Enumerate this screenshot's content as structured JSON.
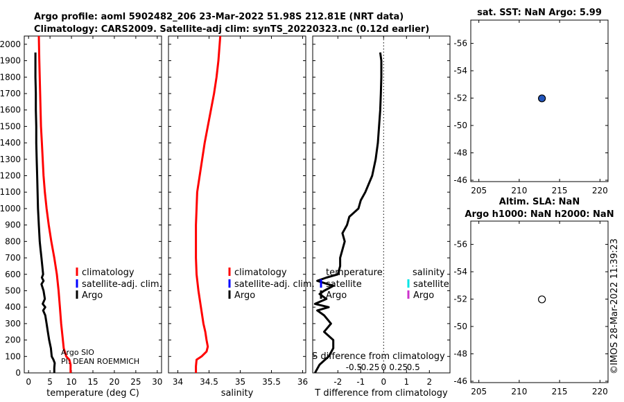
{
  "header": {
    "title_line1": "Argo profile: aoml 5902482_206 23-Mar-2022 51.98S 212.81E (NRT data)",
    "title_line2": "Climatology: CARS2009. Satellite-adj clim: synTS_20220323.nc (0.12d earlier)"
  },
  "footer": {
    "copyright": "©IMOS 28-Mar-2022 11:39:23",
    "argo_institution": "Argo SIO",
    "pi": "PI: DEAN ROEMMICH"
  },
  "colors": {
    "argo": "#000000",
    "climatology": "#ff0000",
    "satellite": "#0000ff",
    "satellite_salinity": "#00e5e5",
    "argo_salinity": "#cc33cc",
    "marker_fill": "#2255bb"
  },
  "chart_data": [
    {
      "id": "temperature",
      "type": "line",
      "xlabel": "temperature (deg C)",
      "ylabel": "",
      "xlim": [
        -1,
        31
      ],
      "ylim": [
        2050,
        0
      ],
      "xticks": [
        0,
        5,
        10,
        15,
        20,
        25,
        30
      ],
      "xtick_labels": [
        "0",
        "5",
        "10",
        "15",
        "20",
        "25",
        "30"
      ],
      "yticks": [
        0,
        100,
        200,
        300,
        400,
        500,
        600,
        700,
        800,
        900,
        1000,
        1100,
        1200,
        1300,
        1400,
        1500,
        1600,
        1700,
        1800,
        1900,
        2000
      ],
      "ytick_labels": [
        "0",
        "100",
        "200",
        "300",
        "400",
        "500",
        "600",
        "700",
        "800",
        "900",
        "1000",
        "1100",
        "1200",
        "1300",
        "1400",
        "1500",
        "1600",
        "1700",
        "1800",
        "1900",
        "2000"
      ],
      "legend": [
        "climatology",
        "satellite-adj. clim.",
        "Argo"
      ],
      "series": [
        {
          "name": "climatology",
          "color": "#ff0000",
          "depth": [
            0,
            50,
            80,
            100,
            150,
            200,
            300,
            400,
            500,
            600,
            700,
            800,
            900,
            1000,
            1100,
            1200,
            1300,
            1400,
            1500,
            1600,
            1700,
            1800,
            1900,
            2050
          ],
          "values": [
            9.8,
            9.8,
            9.5,
            8.8,
            8.2,
            8.0,
            7.6,
            7.3,
            7.0,
            6.6,
            6.0,
            5.3,
            4.7,
            4.2,
            3.8,
            3.5,
            3.3,
            3.1,
            2.9,
            2.8,
            2.7,
            2.6,
            2.5,
            2.4
          ]
        },
        {
          "name": "Argo",
          "color": "#000000",
          "depth": [
            0,
            30,
            60,
            80,
            100,
            150,
            200,
            250,
            300,
            350,
            380,
            400,
            420,
            450,
            500,
            540,
            560,
            580,
            600,
            650,
            700,
            750,
            800,
            900,
            1000,
            1100,
            1200,
            1300,
            1400,
            1500,
            1600,
            1700,
            1800,
            1900,
            1950
          ],
          "values": [
            6.0,
            6.0,
            6.1,
            5.8,
            5.4,
            5.2,
            4.8,
            4.5,
            4.2,
            3.9,
            3.4,
            3.9,
            3.3,
            3.8,
            3.5,
            3.0,
            3.5,
            3.1,
            3.4,
            3.2,
            3.0,
            2.8,
            2.6,
            2.4,
            2.2,
            2.1,
            2.0,
            1.9,
            1.8,
            1.8,
            1.7,
            1.7,
            1.6,
            1.6,
            1.6
          ]
        }
      ]
    },
    {
      "id": "salinity",
      "type": "line",
      "xlabel": "salinity",
      "xlim": [
        33.85,
        36.05
      ],
      "ylim": [
        2050,
        0
      ],
      "xticks": [
        34,
        34.5,
        35,
        35.5,
        36
      ],
      "xtick_labels": [
        "34",
        "34.5",
        "35",
        "35.5",
        "36"
      ],
      "legend": [
        "climatology",
        "satellite-adj. clim.",
        "Argo"
      ],
      "series": [
        {
          "name": "climatology",
          "color": "#ff0000",
          "depth": [
            0,
            40,
            80,
            100,
            130,
            160,
            200,
            250,
            300,
            400,
            500,
            600,
            700,
            800,
            900,
            1000,
            1100,
            1200,
            1300,
            1400,
            1500,
            1600,
            1700,
            1800,
            1900,
            2050
          ],
          "values": [
            34.29,
            34.29,
            34.3,
            34.38,
            34.46,
            34.48,
            34.46,
            34.44,
            34.41,
            34.37,
            34.33,
            34.3,
            34.29,
            34.29,
            34.29,
            34.3,
            34.31,
            34.35,
            34.39,
            34.43,
            34.48,
            34.53,
            34.58,
            34.62,
            34.65,
            34.68
          ]
        }
      ]
    },
    {
      "id": "difference",
      "type": "line",
      "xlabel": "T difference from climatology",
      "xlabel_top": "S difference from climatology",
      "xlim": [
        -3.1,
        2.9
      ],
      "ylim": [
        2050,
        0
      ],
      "xticks": [
        -2,
        -1,
        0,
        1,
        2
      ],
      "xtick_labels": [
        "-2",
        "-1",
        "0",
        "1",
        "2"
      ],
      "s_tick_labels": [
        "-0.5",
        "-0.25",
        "0",
        "0.25",
        "0.5"
      ],
      "legend_headers": [
        "temperature",
        "salinity"
      ],
      "legend_temperature": [
        "satellite",
        "Argo"
      ],
      "legend_salinity": [
        "satellite",
        "Argo"
      ],
      "series": [
        {
          "name": "T difference Argo",
          "color": "#000000",
          "depth": [
            0,
            50,
            100,
            150,
            200,
            250,
            300,
            350,
            380,
            400,
            420,
            450,
            480,
            500,
            530,
            560,
            580,
            600,
            650,
            700,
            750,
            800,
            850,
            900,
            950,
            1000,
            1050,
            1100,
            1200,
            1300,
            1400,
            1500,
            1600,
            1700,
            1800,
            1900,
            1950
          ],
          "values": [
            -3.0,
            -2.8,
            -2.4,
            -2.2,
            -2.2,
            -2.6,
            -2.3,
            -2.6,
            -2.9,
            -2.4,
            -3.0,
            -2.5,
            -2.8,
            -2.6,
            -2.2,
            -2.9,
            -2.5,
            -2.0,
            -1.9,
            -1.9,
            -1.8,
            -1.7,
            -1.8,
            -1.6,
            -1.5,
            -1.1,
            -1.0,
            -0.8,
            -0.5,
            -0.35,
            -0.25,
            -0.2,
            -0.15,
            -0.12,
            -0.1,
            -0.1,
            -0.15
          ]
        }
      ]
    },
    {
      "id": "sat_sst_map",
      "type": "scatter",
      "title": "sat. SST: NaN Argo: 5.99",
      "xlim": [
        204,
        221
      ],
      "ylim": [
        -57.7,
        -45.9
      ],
      "xticks": [
        205,
        210,
        215,
        220
      ],
      "xtick_labels": [
        "205",
        "210",
        "215",
        "220"
      ],
      "yticks": [
        -46,
        -48,
        -50,
        -52,
        -54,
        -56
      ],
      "ytick_labels": [
        "-46",
        "-48",
        "-50",
        "-52",
        "-54",
        "-56"
      ],
      "points": [
        {
          "x": 212.81,
          "y": -51.98,
          "filled": true
        }
      ]
    },
    {
      "id": "altim_map",
      "type": "scatter",
      "title_line1": "Altim. SLA: NaN",
      "title_line2": "Argo h1000: NaN h2000: NaN",
      "xlim": [
        204,
        221
      ],
      "ylim": [
        -57.7,
        -45.9
      ],
      "xticks": [
        205,
        210,
        215,
        220
      ],
      "xtick_labels": [
        "205",
        "210",
        "215",
        "220"
      ],
      "yticks": [
        -46,
        -48,
        -50,
        -52,
        -54,
        -56
      ],
      "ytick_labels": [
        "-46",
        "-48",
        "-50",
        "-52",
        "-54",
        "-56"
      ],
      "points": [
        {
          "x": 212.81,
          "y": -51.98,
          "filled": false
        }
      ]
    }
  ]
}
